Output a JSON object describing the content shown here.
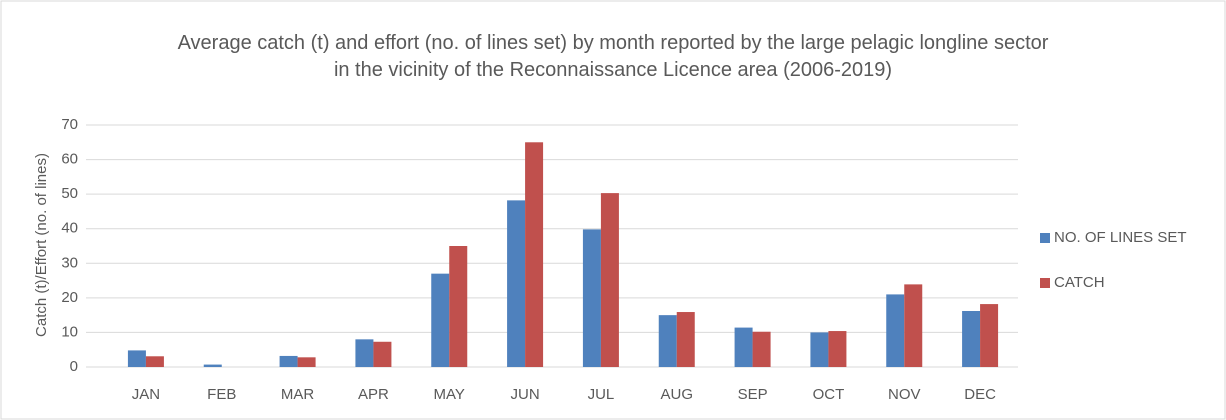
{
  "chart_data": {
    "type": "bar",
    "title": "Average catch (t) and effort (no. of lines set) by month reported by the large pelagic longline sector in the vicinity of the Reconnaissance Licence area (2006-2019)",
    "y_label": "Catch (t)/Effort (no. of lines)",
    "categories": [
      "JAN",
      "FEB",
      "MAR",
      "APR",
      "MAY",
      "JUN",
      "JUL",
      "AUG",
      "SEP",
      "OCT",
      "NOV",
      "DEC"
    ],
    "series": [
      {
        "name": "NO. OF LINES SET",
        "color": "#4f81bd",
        "values": [
          4.8,
          0.7,
          3.2,
          8,
          27,
          48.2,
          39.8,
          15,
          11.4,
          10,
          21,
          16.2
        ]
      },
      {
        "name": "CATCH",
        "color": "#c0504d",
        "values": [
          3.1,
          0,
          2.8,
          7.3,
          35,
          65,
          50.3,
          15.9,
          10.2,
          10.4,
          23.9,
          18.2
        ]
      }
    ],
    "ylim": [
      0,
      70
    ],
    "yticks": [
      0,
      10,
      20,
      30,
      40,
      50,
      60,
      70
    ],
    "grid": true,
    "legend": "right"
  }
}
